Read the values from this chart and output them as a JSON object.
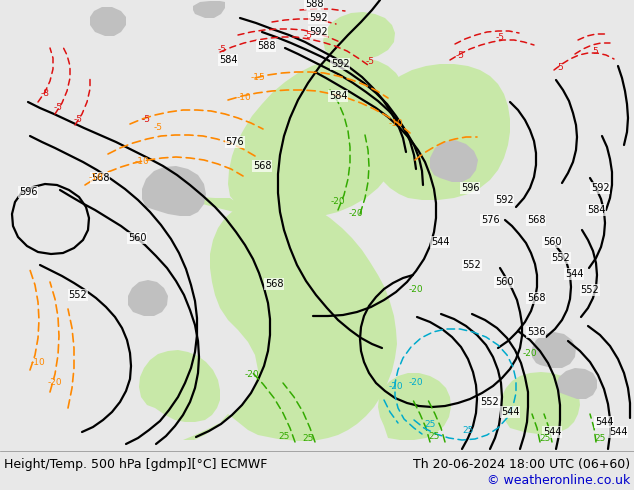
{
  "title_left": "Height/Temp. 500 hPa [gdmp][°C] ECMWF",
  "title_right": "Th 20-06-2024 18:00 UTC (06+60)",
  "copyright": "© weatheronline.co.uk",
  "bg_color": "#e8e8e8",
  "text_color": "#000000",
  "copyright_color": "#0000cc",
  "font_size_main": 8.5,
  "font_size_copy": 8.5,
  "figsize": [
    6.34,
    4.9
  ],
  "dpi": 100,
  "map_region": [
    0,
    0,
    634,
    450
  ],
  "bottom_bar_height": 40,
  "bottom_bar_color": "#e8e8e8",
  "map_bg": "#f0eeea",
  "green_color": "#c8e8a8",
  "gray_color": "#c0c0c0",
  "black_line_color": "#000000",
  "orange_line_color": "#ff8800",
  "red_line_color": "#dd1111",
  "green_line_color": "#33aa00",
  "cyan_line_color": "#00aacc"
}
